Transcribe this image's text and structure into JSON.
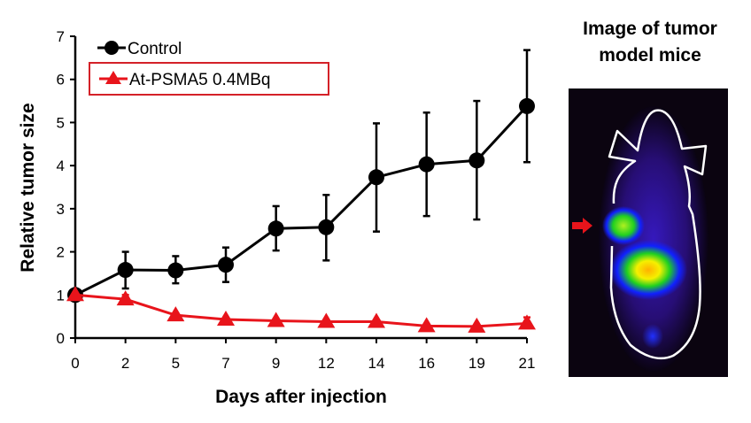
{
  "chart_data": {
    "type": "line",
    "xlabel": "Days after injection",
    "ylabel": "Relative tumor size",
    "categories": [
      "0",
      "2",
      "5",
      "7",
      "9",
      "12",
      "14",
      "16",
      "19",
      "21"
    ],
    "ylim": [
      0,
      7
    ],
    "yticks": [
      "0",
      "1",
      "2",
      "3",
      "4",
      "5",
      "6",
      "7"
    ],
    "grid": false,
    "legend_position": "top-left",
    "series": [
      {
        "name": "Control",
        "color": "#000000",
        "marker": "circle",
        "values": [
          1.0,
          1.58,
          1.57,
          1.7,
          2.54,
          2.57,
          3.73,
          4.03,
          4.12,
          5.38
        ],
        "error_upper": [
          1.0,
          2.0,
          1.9,
          2.1,
          3.06,
          3.32,
          4.98,
          5.23,
          5.5,
          6.68
        ],
        "error_lower": [
          1.0,
          1.15,
          1.27,
          1.3,
          2.03,
          1.8,
          2.47,
          2.83,
          2.75,
          4.08
        ]
      },
      {
        "name": "At-PSMA5 0.4MBq",
        "color": "#e8141b",
        "marker": "triangle",
        "values": [
          1.0,
          0.9,
          0.53,
          0.43,
          0.4,
          0.38,
          0.38,
          0.28,
          0.27,
          0.34
        ],
        "error_upper": [
          1.0,
          1.0,
          0.55,
          0.45,
          0.42,
          0.4,
          0.4,
          0.3,
          0.29,
          0.48
        ],
        "error_lower": [
          1.0,
          0.8,
          0.51,
          0.41,
          0.38,
          0.36,
          0.36,
          0.26,
          0.25,
          0.3
        ]
      }
    ]
  },
  "panel": {
    "title_line1": "Image of tumor",
    "title_line2": "model mice",
    "arrow_color": "#e8141b"
  }
}
